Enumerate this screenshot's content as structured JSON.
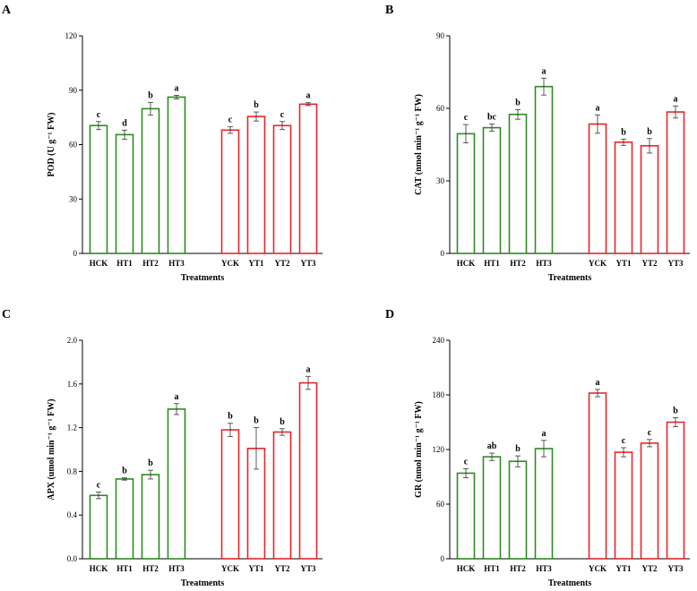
{
  "chart_data": [
    {
      "type": "bar",
      "panel": "A",
      "ylabel": "POD (U g⁻¹ FW)",
      "xlabel": "Treatments",
      "ylim": [
        0,
        120
      ],
      "yticks": [
        "0",
        "30",
        "60",
        "90",
        "120"
      ],
      "categories": [
        "HCK",
        "HT1",
        "HT2",
        "HT3",
        "YCK",
        "YT1",
        "YT2",
        "YT3"
      ],
      "values": [
        70.5,
        65.5,
        79.8,
        86.2,
        68.0,
        75.5,
        70.5,
        82.3
      ],
      "errors": [
        2.2,
        2.5,
        3.5,
        1.0,
        1.8,
        2.5,
        2.2,
        0.8
      ],
      "letters": [
        "c",
        "d",
        "b",
        "a",
        "c",
        "b",
        "c",
        "a"
      ],
      "colors": [
        "#2e8b22",
        "#2e8b22",
        "#2e8b22",
        "#2e8b22",
        "#e8262b",
        "#e8262b",
        "#e8262b",
        "#e8262b"
      ]
    },
    {
      "type": "bar",
      "panel": "B",
      "ylabel": "CAT (nmol min⁻¹ g⁻¹ FW)",
      "xlabel": "Treatments",
      "ylim": [
        0,
        90
      ],
      "yticks": [
        "0",
        "30",
        "60",
        "90"
      ],
      "categories": [
        "HCK",
        "HT1",
        "HT2",
        "HT3",
        "YCK",
        "YT1",
        "YT2",
        "YT3"
      ],
      "values": [
        49.5,
        52.0,
        57.5,
        69.0,
        53.5,
        46.0,
        44.5,
        58.5
      ],
      "errors": [
        3.8,
        1.5,
        2.0,
        3.5,
        3.8,
        1.3,
        3.0,
        2.5
      ],
      "letters": [
        "c",
        "bc",
        "b",
        "a",
        "a",
        "b",
        "b",
        "a"
      ],
      "colors": [
        "#2e8b22",
        "#2e8b22",
        "#2e8b22",
        "#2e8b22",
        "#e8262b",
        "#e8262b",
        "#e8262b",
        "#e8262b"
      ]
    },
    {
      "type": "bar",
      "panel": "C",
      "ylabel": "APX (umol min⁻¹ g⁻¹ FW)",
      "xlabel": "Treatments",
      "ylim": [
        0,
        2.0
      ],
      "yticks": [
        "0.0",
        "0.4",
        "0.8",
        "1.2",
        "1.6",
        "2.0"
      ],
      "categories": [
        "HCK",
        "HT1",
        "HT2",
        "HT3",
        "YCK",
        "YT1",
        "YT2",
        "YT3"
      ],
      "values": [
        0.58,
        0.73,
        0.77,
        1.37,
        1.18,
        1.01,
        1.16,
        1.61
      ],
      "errors": [
        0.03,
        0.01,
        0.04,
        0.05,
        0.06,
        0.19,
        0.03,
        0.06
      ],
      "letters": [
        "c",
        "b",
        "b",
        "a",
        "b",
        "b",
        "b",
        "a"
      ],
      "colors": [
        "#2e8b22",
        "#2e8b22",
        "#2e8b22",
        "#2e8b22",
        "#e8262b",
        "#e8262b",
        "#e8262b",
        "#e8262b"
      ]
    },
    {
      "type": "bar",
      "panel": "D",
      "ylabel": "GR (nmol min⁻¹ g⁻¹ FW)",
      "xlabel": "Treatments",
      "ylim": [
        0,
        240
      ],
      "yticks": [
        "0",
        "60",
        "120",
        "180",
        "240"
      ],
      "categories": [
        "HCK",
        "HT1",
        "HT2",
        "HT3",
        "YCK",
        "YT1",
        "YT2",
        "YT3"
      ],
      "values": [
        94,
        112,
        107,
        121,
        182,
        117,
        127,
        150
      ],
      "errors": [
        5,
        4,
        6,
        9,
        4,
        5,
        4,
        5
      ],
      "letters": [
        "c",
        "ab",
        "b",
        "a",
        "a",
        "c",
        "c",
        "b"
      ],
      "colors": [
        "#2e8b22",
        "#2e8b22",
        "#2e8b22",
        "#2e8b22",
        "#e8262b",
        "#e8262b",
        "#e8262b",
        "#e8262b"
      ]
    }
  ]
}
